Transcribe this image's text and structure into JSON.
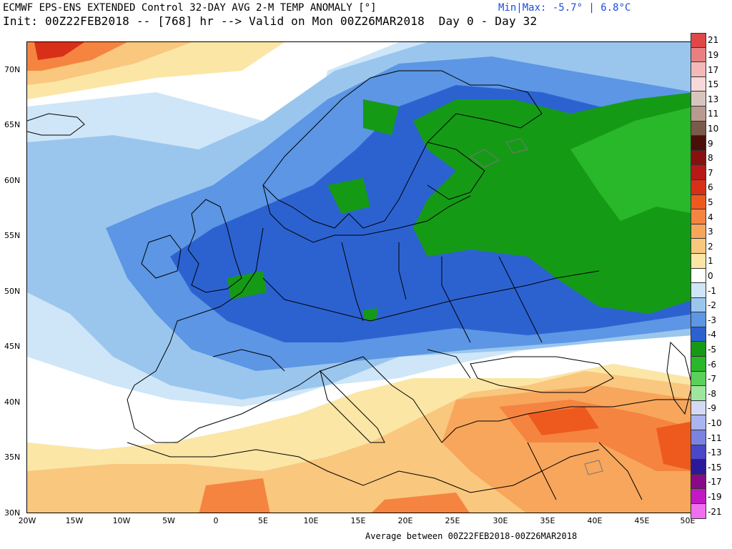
{
  "header": {
    "title_line1": "ECMWF EPS-ENS EXTENDED Control 32-DAY AVG 2-M TEMP ANOMALY [°]",
    "minmax": "Min|Max: -5.7° | 6.8°C",
    "title_line2": "Init: 00Z22FEB2018 -- [768] hr --> Valid on Mon 00Z26MAR2018  Day 0 - Day 32"
  },
  "footer": {
    "average_text": "Average between 00Z22FEB2018-00Z26MAR2018"
  },
  "map": {
    "lat_labels": [
      "70N",
      "65N",
      "60N",
      "55N",
      "50N",
      "45N",
      "40N",
      "35N",
      "30N"
    ],
    "lon_labels": [
      "20W",
      "15W",
      "10W",
      "5W",
      "0",
      "5E",
      "10E",
      "15E",
      "20E",
      "25E",
      "30E",
      "35E",
      "40E",
      "45E",
      "50E"
    ]
  },
  "colorbar": {
    "labels": [
      "21",
      "19",
      "17",
      "15",
      "13",
      "11",
      "10",
      "9",
      "8",
      "7",
      "6",
      "5",
      "4",
      "3",
      "2",
      "1",
      "0",
      "-1",
      "-2",
      "-3",
      "-4",
      "-5",
      "-6",
      "-7",
      "-8",
      "-9",
      "-10",
      "-11",
      "-13",
      "-15",
      "-17",
      "-19",
      "-21"
    ],
    "colors": [
      "#e04848",
      "#e98080",
      "#f3b8b8",
      "#f7d9d9",
      "#d8c4be",
      "#b89a90",
      "#7a5a4a",
      "#4a1008",
      "#8a1010",
      "#b81818",
      "#d83018",
      "#ee5a1e",
      "#f58440",
      "#f7a65c",
      "#f9c77e",
      "#fbe6a6",
      "#ffffff",
      "#cfe6f8",
      "#9ac6ee",
      "#5c96e4",
      "#2c62d0",
      "#159a16",
      "#28b82a",
      "#5ad15a",
      "#9ee69e",
      "#d4daf6",
      "#aab4ee",
      "#7a84e0",
      "#4848c8",
      "#2a1a9a",
      "#880a88",
      "#c21ac2",
      "#f06ef0"
    ]
  },
  "colors": {
    "minmax_text": "#1a4fd6",
    "coast": "#000000",
    "lake": "#777777"
  }
}
